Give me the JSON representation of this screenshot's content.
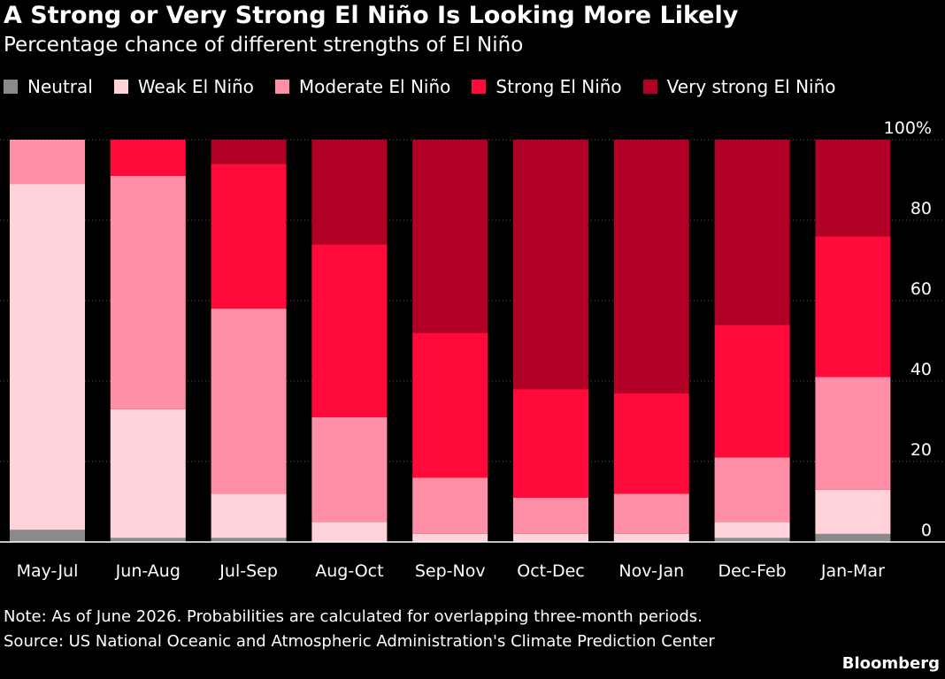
{
  "title": "A Strong or Very Strong El Niño Is Looking More Likely",
  "subtitle": "Percentage chance of different strengths of El Niño",
  "note": "Note: As of June 2026. Probabilities are calculated for overlapping three-month periods.",
  "source": "Source: US National Oceanic and Atmospheric Administration's Climate Prediction Center",
  "credit": "Bloomberg",
  "chart_data": {
    "type": "bar",
    "stacked": true,
    "title": "A Strong or Very Strong El Niño Is Looking More Likely",
    "subtitle": "Percentage chance of different strengths of El Niño",
    "xlabel": "",
    "ylabel": "",
    "ylim": [
      0,
      100
    ],
    "y_ticks": [
      "0",
      "20",
      "40",
      "60",
      "80",
      "100%"
    ],
    "y_tick_values": [
      0,
      20,
      40,
      60,
      80,
      100
    ],
    "y_axis_side": "right",
    "legend_position": "top",
    "grid": true,
    "categories": [
      "May-Jul",
      "Jun-Aug",
      "Jul-Sep",
      "Aug-Oct",
      "Sep-Nov",
      "Oct-Dec",
      "Nov-Jan",
      "Dec-Feb",
      "Jan-Mar"
    ],
    "series": [
      {
        "name": "Neutral",
        "color": "#8a8a8a",
        "values": [
          3,
          1,
          1,
          0,
          0,
          0,
          0,
          1,
          2
        ]
      },
      {
        "name": "Weak El Niño",
        "color": "#ffd3d9",
        "values": [
          86,
          32,
          11,
          5,
          2,
          2,
          2,
          4,
          11
        ]
      },
      {
        "name": "Moderate El Niño",
        "color": "#ff8fa6",
        "values": [
          11,
          58,
          46,
          26,
          14,
          9,
          10,
          16,
          28
        ]
      },
      {
        "name": "Strong El Niño",
        "color": "#ff0a3b",
        "values": [
          0,
          9,
          36,
          43,
          36,
          27,
          25,
          33,
          35
        ]
      },
      {
        "name": "Very strong El Niño",
        "color": "#b00025",
        "values": [
          0,
          0,
          6,
          26,
          48,
          62,
          63,
          46,
          24
        ]
      }
    ]
  }
}
